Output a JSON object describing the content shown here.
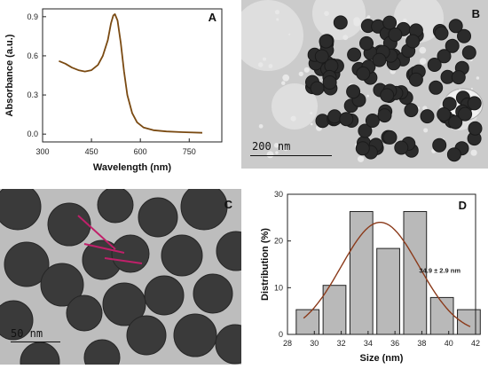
{
  "panels": {
    "A": {
      "letter": "A",
      "chart_data": {
        "type": "line",
        "xlabel": "Wavelength (nm)",
        "ylabel": "Absorbance (a.u.)",
        "xlim": [
          300,
          850
        ],
        "ylim": [
          -0.06,
          0.96
        ],
        "xticks": [
          300,
          450,
          600,
          750
        ],
        "yticks": [
          0.0,
          0.3,
          0.6,
          0.9
        ],
        "ytick_labels": [
          "0.0",
          "0.3",
          "0.6",
          "0.9"
        ],
        "series": [
          {
            "color": "#7a4a12",
            "x": [
              350,
              370,
              390,
              410,
              430,
              450,
              470,
              485,
              500,
              510,
              517,
              522,
              530,
              540,
              550,
              560,
              575,
              590,
              610,
              640,
              680,
              730,
              790
            ],
            "y": [
              0.56,
              0.54,
              0.51,
              0.49,
              0.48,
              0.49,
              0.53,
              0.6,
              0.72,
              0.85,
              0.91,
              0.92,
              0.87,
              0.7,
              0.48,
              0.3,
              0.16,
              0.09,
              0.05,
              0.03,
              0.02,
              0.015,
              0.01
            ]
          }
        ]
      }
    },
    "B": {
      "letter": "B",
      "scale_text": "200 nm"
    },
    "C": {
      "letter": "C",
      "scale_text": "50 nm"
    },
    "D": {
      "letter": "D",
      "chart_data": {
        "type": "bar",
        "xlabel": "Size (nm)",
        "ylabel": "Distribution (%)",
        "xlim": [
          28,
          42
        ],
        "ylim": [
          0,
          30
        ],
        "xticks": [
          28,
          30,
          32,
          34,
          36,
          38,
          40,
          42
        ],
        "yticks": [
          0,
          10,
          20,
          30
        ],
        "bins": [
          {
            "center": 29.5,
            "value": 5.3
          },
          {
            "center": 31.5,
            "value": 10.5
          },
          {
            "center": 33.5,
            "value": 26.3
          },
          {
            "center": 35.5,
            "value": 18.4
          },
          {
            "center": 37.5,
            "value": 26.3
          },
          {
            "center": 39.5,
            "value": 7.9
          },
          {
            "center": 41.5,
            "value": 5.3
          }
        ],
        "fit": {
          "mean": 34.9,
          "sd": 2.9,
          "amplitude": 24.0,
          "from": 29.2,
          "to": 41.6,
          "color": "#8b3a1a"
        },
        "annotation": "34.9 ± 2.9 nm"
      }
    }
  }
}
